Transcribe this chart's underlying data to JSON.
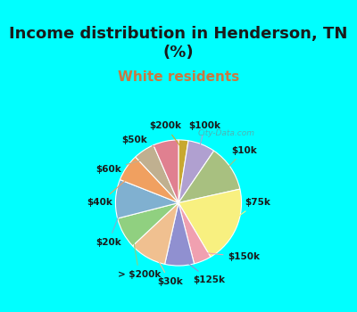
{
  "title": "Income distribution in Henderson, TN\n(%)",
  "subtitle": "White residents",
  "title_color": "#1a1a1a",
  "subtitle_color": "#c87941",
  "background_top": "#00ffff",
  "background_chart": "#e8f5e9",
  "labels": [
    "$200k",
    "$100k",
    "$10k",
    "$75k",
    "$150k",
    "$125k",
    "$30k",
    "> $200k",
    "$20k",
    "$40k",
    "$60k",
    "$50k"
  ],
  "values": [
    2.5,
    7.0,
    12.0,
    20.0,
    4.5,
    7.5,
    9.5,
    8.0,
    10.0,
    7.0,
    5.5,
    6.5
  ],
  "colors": [
    "#c8a830",
    "#b0a0d0",
    "#a8c080",
    "#f8f080",
    "#f0a0b0",
    "#9090d0",
    "#f0c090",
    "#90d080",
    "#80b0d0",
    "#f0a060",
    "#c0b090",
    "#e08090"
  ],
  "label_line_colors": [
    "#c8a830",
    "#b0a0d0",
    "#a8c080",
    "#f8f080",
    "#f0a0b0",
    "#9090d0",
    "#f0c090",
    "#90d080",
    "#80b0d0",
    "#f0a060",
    "#c0b090",
    "#e08090"
  ]
}
